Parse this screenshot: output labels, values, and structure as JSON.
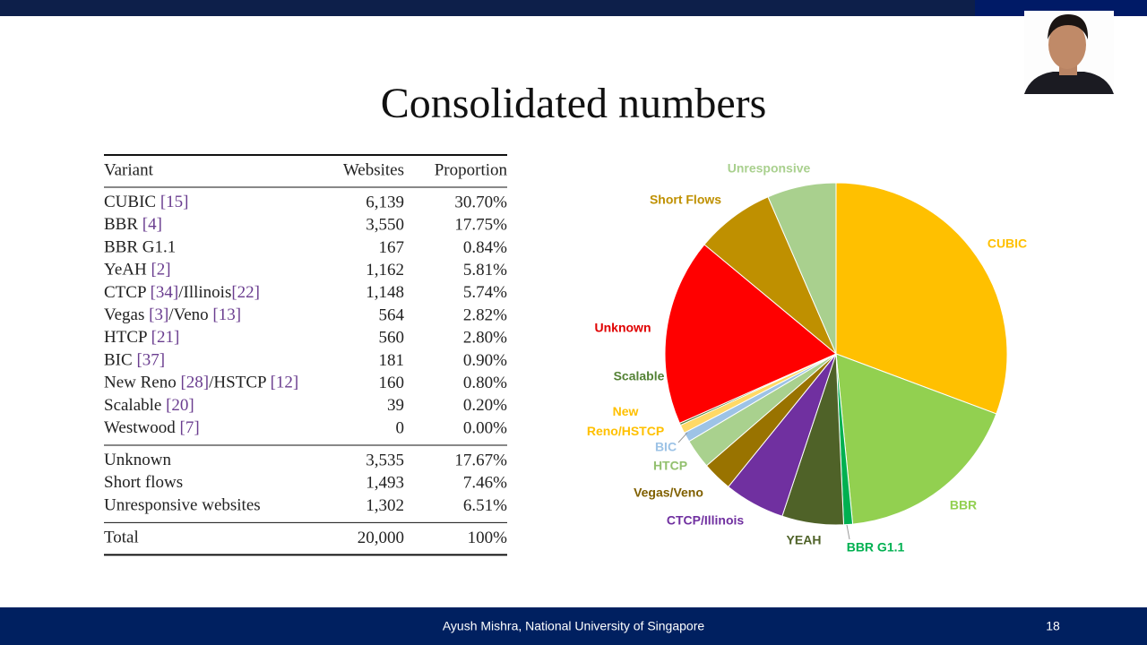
{
  "slide": {
    "title": "Consolidated numbers",
    "footer": "Ayush Mishra, National University of Singapore",
    "page_number": "18"
  },
  "table": {
    "header": [
      "Variant",
      "Websites",
      "Proportion"
    ],
    "groups": [
      [
        [
          [
            "CUBIC ",
            "[15]"
          ],
          "6,139",
          "30.70%"
        ],
        [
          [
            "BBR ",
            "[4]"
          ],
          "3,550",
          "17.75%"
        ],
        [
          [
            "BBR G1.1"
          ],
          "167",
          "0.84%"
        ],
        [
          [
            "YeAH ",
            "[2]"
          ],
          "1,162",
          "5.81%"
        ],
        [
          [
            "CTCP ",
            "[34]",
            "/Illinois",
            "[22]"
          ],
          "1,148",
          "5.74%"
        ],
        [
          [
            "Vegas ",
            "[3]",
            "/Veno ",
            "[13]"
          ],
          "564",
          "2.82%"
        ],
        [
          [
            "HTCP ",
            "[21]"
          ],
          "560",
          "2.80%"
        ],
        [
          [
            "BIC ",
            "[37]"
          ],
          "181",
          "0.90%"
        ],
        [
          [
            "New Reno ",
            "[28]",
            "/HSTCP ",
            "[12]"
          ],
          "160",
          "0.80%"
        ],
        [
          [
            "Scalable ",
            "[20]"
          ],
          "39",
          "0.20%"
        ],
        [
          [
            "Westwood ",
            "[7]"
          ],
          "0",
          "0.00%"
        ]
      ],
      [
        [
          [
            "Unknown"
          ],
          "3,535",
          "17.67%"
        ],
        [
          [
            "Short flows"
          ],
          "1,493",
          "7.46%"
        ],
        [
          [
            "Unresponsive websites"
          ],
          "1,302",
          "6.51%"
        ]
      ],
      [
        [
          [
            "Total"
          ],
          "20,000",
          "100%"
        ]
      ]
    ]
  },
  "chart_data": {
    "type": "pie",
    "categories": [
      "CUBIC",
      "BBR",
      "BBR G1.1",
      "YEAH",
      "CTCP/Illinois",
      "Vegas/Veno",
      "HTCP",
      "BIC",
      "New Reno/HSTCP",
      "Scalable",
      "Unknown",
      "Short Flows",
      "Unresponsive"
    ],
    "values": [
      30.7,
      17.75,
      0.84,
      5.81,
      5.74,
      2.82,
      2.8,
      0.9,
      0.8,
      0.2,
      17.67,
      7.46,
      6.51
    ],
    "colors": [
      "#ffc000",
      "#92d050",
      "#00b050",
      "#4f6228",
      "#7030a0",
      "#997300",
      "#a9d18e",
      "#9dc3e6",
      "#ffd966",
      "#548235",
      "#ff0000",
      "#bf9000",
      "#a9d08e"
    ],
    "label_colors": [
      "#ffc000",
      "#92d050",
      "#00b050",
      "#4f6228",
      "#7030a0",
      "#806000",
      "#92c06e",
      "#9dc3e6",
      "#ffc000",
      "#548235",
      "#e00000",
      "#bf9000",
      "#a9d08e"
    ]
  }
}
